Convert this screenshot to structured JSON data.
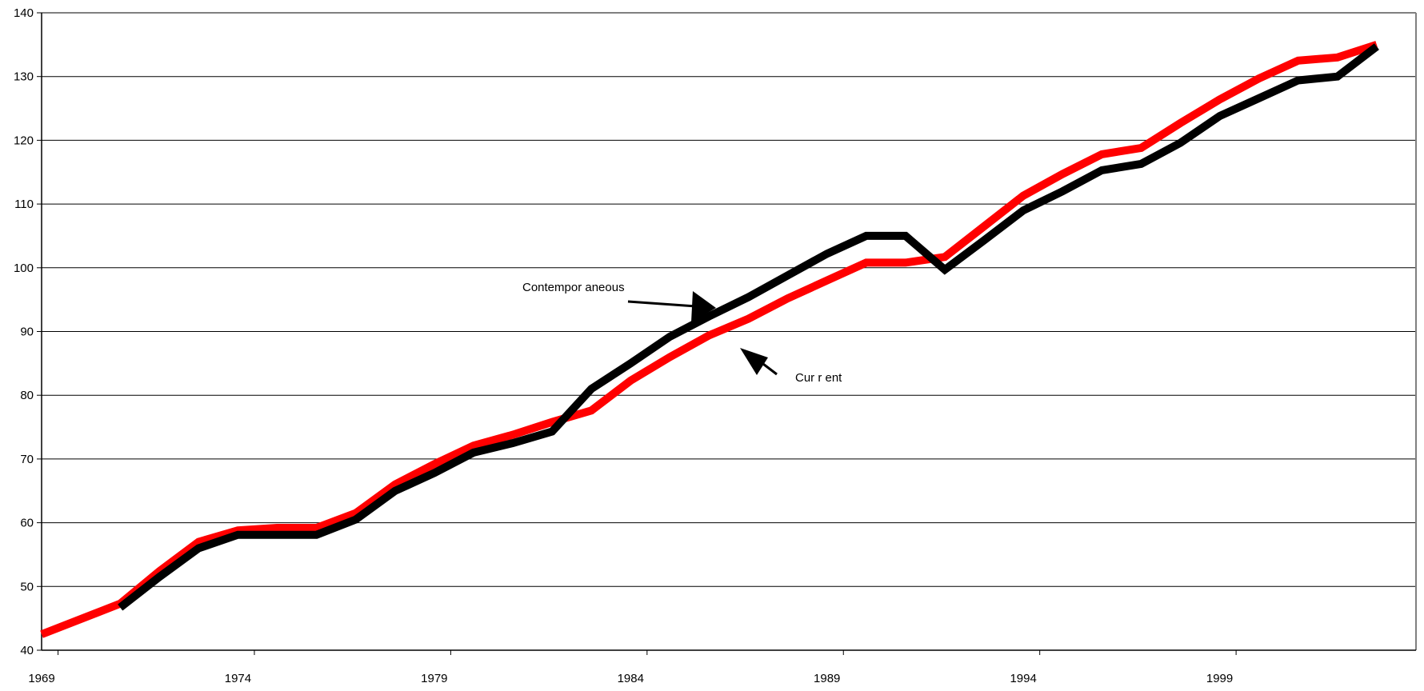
{
  "chart_data": {
    "type": "line",
    "title": "",
    "xlabel": "",
    "ylabel": "",
    "xlim": [
      1969,
      2004
    ],
    "ylim": [
      40,
      140
    ],
    "grid": true,
    "x_ticks": [
      "1969",
      "1974",
      "1979",
      "1984",
      "1989",
      "1994",
      "1999"
    ],
    "y_ticks": [
      "40",
      "50",
      "60",
      "70",
      "80",
      "90",
      "100",
      "110",
      "120",
      "130",
      "140"
    ],
    "series": [
      {
        "name": "Current",
        "color": "#ff0000",
        "x": [
          1969,
          1971,
          1972,
          1973,
          1974,
          1975,
          1976,
          1977,
          1978,
          1979,
          1980,
          1981,
          1982,
          1983,
          1984,
          1985,
          1986,
          1987,
          1988,
          1989,
          1990,
          1991,
          1992,
          1993,
          1994,
          1995,
          1996,
          1997,
          1998,
          1999,
          2000,
          2001,
          2002,
          2003
        ],
        "y": [
          42.5,
          47.3,
          52.4,
          57.0,
          58.8,
          59.2,
          59.2,
          61.5,
          66.0,
          69.2,
          72.1,
          73.8,
          75.8,
          77.6,
          82.3,
          86.0,
          89.4,
          92.0,
          95.2,
          98.0,
          100.8,
          100.8,
          101.7,
          106.5,
          111.3,
          114.7,
          117.8,
          118.8,
          122.7,
          126.4,
          129.7,
          132.5,
          133.0,
          135.0
        ]
      },
      {
        "name": "Contemporaneous",
        "color": "#000000",
        "x": [
          1971,
          1972,
          1973,
          1974,
          1975,
          1976,
          1977,
          1978,
          1979,
          1980,
          1981,
          1982,
          1983,
          1984,
          1985,
          1986,
          1987,
          1988,
          1989,
          1990,
          1991,
          1992,
          1993,
          1994,
          1995,
          1996,
          1997,
          1998,
          1999,
          2000,
          2001,
          2002,
          2003
        ],
        "y": [
          46.7,
          51.5,
          56.0,
          58.1,
          58.1,
          58.1,
          60.5,
          65.0,
          67.8,
          71.0,
          72.5,
          74.3,
          81.0,
          85.0,
          89.2,
          92.4,
          95.4,
          98.8,
          102.2,
          105.0,
          105.0,
          99.7,
          104.3,
          109.0,
          112.0,
          115.3,
          116.3,
          119.6,
          123.8,
          126.6,
          129.4,
          130.0,
          134.7
        ]
      }
    ],
    "annotations": [
      {
        "text": "Contempor aneous",
        "points_to": "Contemporaneous"
      },
      {
        "text": "Cur r ent",
        "points_to": "Current"
      }
    ]
  }
}
